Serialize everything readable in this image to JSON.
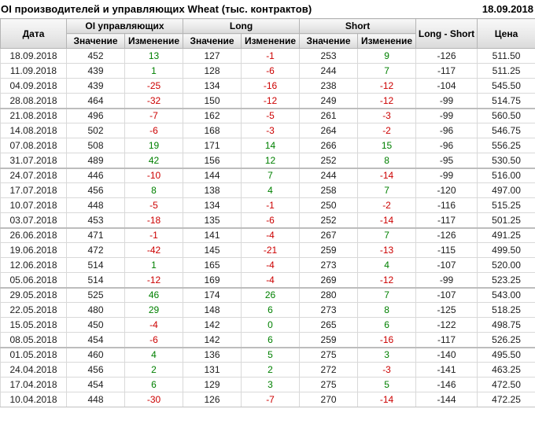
{
  "title": "OI производителей и управляющих Wheat (тыс. контрактов)",
  "report_date": "18.09.2018",
  "colors": {
    "positive": "#008000",
    "negative": "#cc0000",
    "header_background": "#e9e9e9",
    "grid_line": "#d9d9d9",
    "group_separator": "#bdbdbd"
  },
  "headers": {
    "date": "Дата",
    "oi_group": "OI управляющих",
    "long_group": "Long",
    "short_group": "Short",
    "value": "Значение",
    "change": "Изменение",
    "long_short": "Long - Short",
    "price": "Цена"
  },
  "chart_data": {
    "type": "table",
    "title": "OI производителей и управляющих Wheat (тыс. контрактов)",
    "column_groups": [
      "Дата",
      "OI управляющих",
      "Long",
      "Short",
      "Long - Short",
      "Цена"
    ],
    "columns": [
      "Дата",
      "Значение",
      "Изменение",
      "Значение",
      "Изменение",
      "Значение",
      "Изменение",
      "Long - Short",
      "Цена"
    ],
    "group_row_span": 4,
    "rows": [
      {
        "date": "18.09.2018",
        "oi_value": 452,
        "oi_change": 13,
        "long_value": 127,
        "long_change": -1,
        "short_value": 253,
        "short_change": 9,
        "long_short": -126,
        "price": "511.50"
      },
      {
        "date": "11.09.2018",
        "oi_value": 439,
        "oi_change": 1,
        "long_value": 128,
        "long_change": -6,
        "short_value": 244,
        "short_change": 7,
        "long_short": -117,
        "price": "511.25"
      },
      {
        "date": "04.09.2018",
        "oi_value": 439,
        "oi_change": -25,
        "long_value": 134,
        "long_change": -16,
        "short_value": 238,
        "short_change": -12,
        "long_short": -104,
        "price": "545.50"
      },
      {
        "date": "28.08.2018",
        "oi_value": 464,
        "oi_change": -32,
        "long_value": 150,
        "long_change": -12,
        "short_value": 249,
        "short_change": -12,
        "long_short": -99,
        "price": "514.75"
      },
      {
        "date": "21.08.2018",
        "oi_value": 496,
        "oi_change": -7,
        "long_value": 162,
        "long_change": -5,
        "short_value": 261,
        "short_change": -3,
        "long_short": -99,
        "price": "560.50"
      },
      {
        "date": "14.08.2018",
        "oi_value": 502,
        "oi_change": -6,
        "long_value": 168,
        "long_change": -3,
        "short_value": 264,
        "short_change": -2,
        "long_short": -96,
        "price": "546.75"
      },
      {
        "date": "07.08.2018",
        "oi_value": 508,
        "oi_change": 19,
        "long_value": 171,
        "long_change": 14,
        "short_value": 266,
        "short_change": 15,
        "long_short": -96,
        "price": "556.25"
      },
      {
        "date": "31.07.2018",
        "oi_value": 489,
        "oi_change": 42,
        "long_value": 156,
        "long_change": 12,
        "short_value": 252,
        "short_change": 8,
        "long_short": -95,
        "price": "530.50"
      },
      {
        "date": "24.07.2018",
        "oi_value": 446,
        "oi_change": -10,
        "long_value": 144,
        "long_change": 7,
        "short_value": 244,
        "short_change": -14,
        "long_short": -99,
        "price": "516.00"
      },
      {
        "date": "17.07.2018",
        "oi_value": 456,
        "oi_change": 8,
        "long_value": 138,
        "long_change": 4,
        "short_value": 258,
        "short_change": 7,
        "long_short": -120,
        "price": "497.00"
      },
      {
        "date": "10.07.2018",
        "oi_value": 448,
        "oi_change": -5,
        "long_value": 134,
        "long_change": -1,
        "short_value": 250,
        "short_change": -2,
        "long_short": -116,
        "price": "515.25"
      },
      {
        "date": "03.07.2018",
        "oi_value": 453,
        "oi_change": -18,
        "long_value": 135,
        "long_change": -6,
        "short_value": 252,
        "short_change": -14,
        "long_short": -117,
        "price": "501.25"
      },
      {
        "date": "26.06.2018",
        "oi_value": 471,
        "oi_change": -1,
        "long_value": 141,
        "long_change": -4,
        "short_value": 267,
        "short_change": 7,
        "long_short": -126,
        "price": "491.25"
      },
      {
        "date": "19.06.2018",
        "oi_value": 472,
        "oi_change": -42,
        "long_value": 145,
        "long_change": -21,
        "short_value": 259,
        "short_change": -13,
        "long_short": -115,
        "price": "499.50"
      },
      {
        "date": "12.06.2018",
        "oi_value": 514,
        "oi_change": 1,
        "long_value": 165,
        "long_change": -4,
        "short_value": 273,
        "short_change": 4,
        "long_short": -107,
        "price": "520.00"
      },
      {
        "date": "05.06.2018",
        "oi_value": 514,
        "oi_change": -12,
        "long_value": 169,
        "long_change": -4,
        "short_value": 269,
        "short_change": -12,
        "long_short": -99,
        "price": "523.25"
      },
      {
        "date": "29.05.2018",
        "oi_value": 525,
        "oi_change": 46,
        "long_value": 174,
        "long_change": 26,
        "short_value": 280,
        "short_change": 7,
        "long_short": -107,
        "price": "543.00"
      },
      {
        "date": "22.05.2018",
        "oi_value": 480,
        "oi_change": 29,
        "long_value": 148,
        "long_change": 6,
        "short_value": 273,
        "short_change": 8,
        "long_short": -125,
        "price": "518.25"
      },
      {
        "date": "15.05.2018",
        "oi_value": 450,
        "oi_change": -4,
        "long_value": 142,
        "long_change": 0,
        "short_value": 265,
        "short_change": 6,
        "long_short": -122,
        "price": "498.75"
      },
      {
        "date": "08.05.2018",
        "oi_value": 454,
        "oi_change": -6,
        "long_value": 142,
        "long_change": 6,
        "short_value": 259,
        "short_change": -16,
        "long_short": -117,
        "price": "526.25"
      },
      {
        "date": "01.05.2018",
        "oi_value": 460,
        "oi_change": 4,
        "long_value": 136,
        "long_change": 5,
        "short_value": 275,
        "short_change": 3,
        "long_short": -140,
        "price": "495.50"
      },
      {
        "date": "24.04.2018",
        "oi_value": 456,
        "oi_change": 2,
        "long_value": 131,
        "long_change": 2,
        "short_value": 272,
        "short_change": -3,
        "long_short": -141,
        "price": "463.25"
      },
      {
        "date": "17.04.2018",
        "oi_value": 454,
        "oi_change": 6,
        "long_value": 129,
        "long_change": 3,
        "short_value": 275,
        "short_change": 5,
        "long_short": -146,
        "price": "472.50"
      },
      {
        "date": "10.04.2018",
        "oi_value": 448,
        "oi_change": -30,
        "long_value": 126,
        "long_change": -7,
        "short_value": 270,
        "short_change": -14,
        "long_short": -144,
        "price": "472.25"
      }
    ]
  }
}
